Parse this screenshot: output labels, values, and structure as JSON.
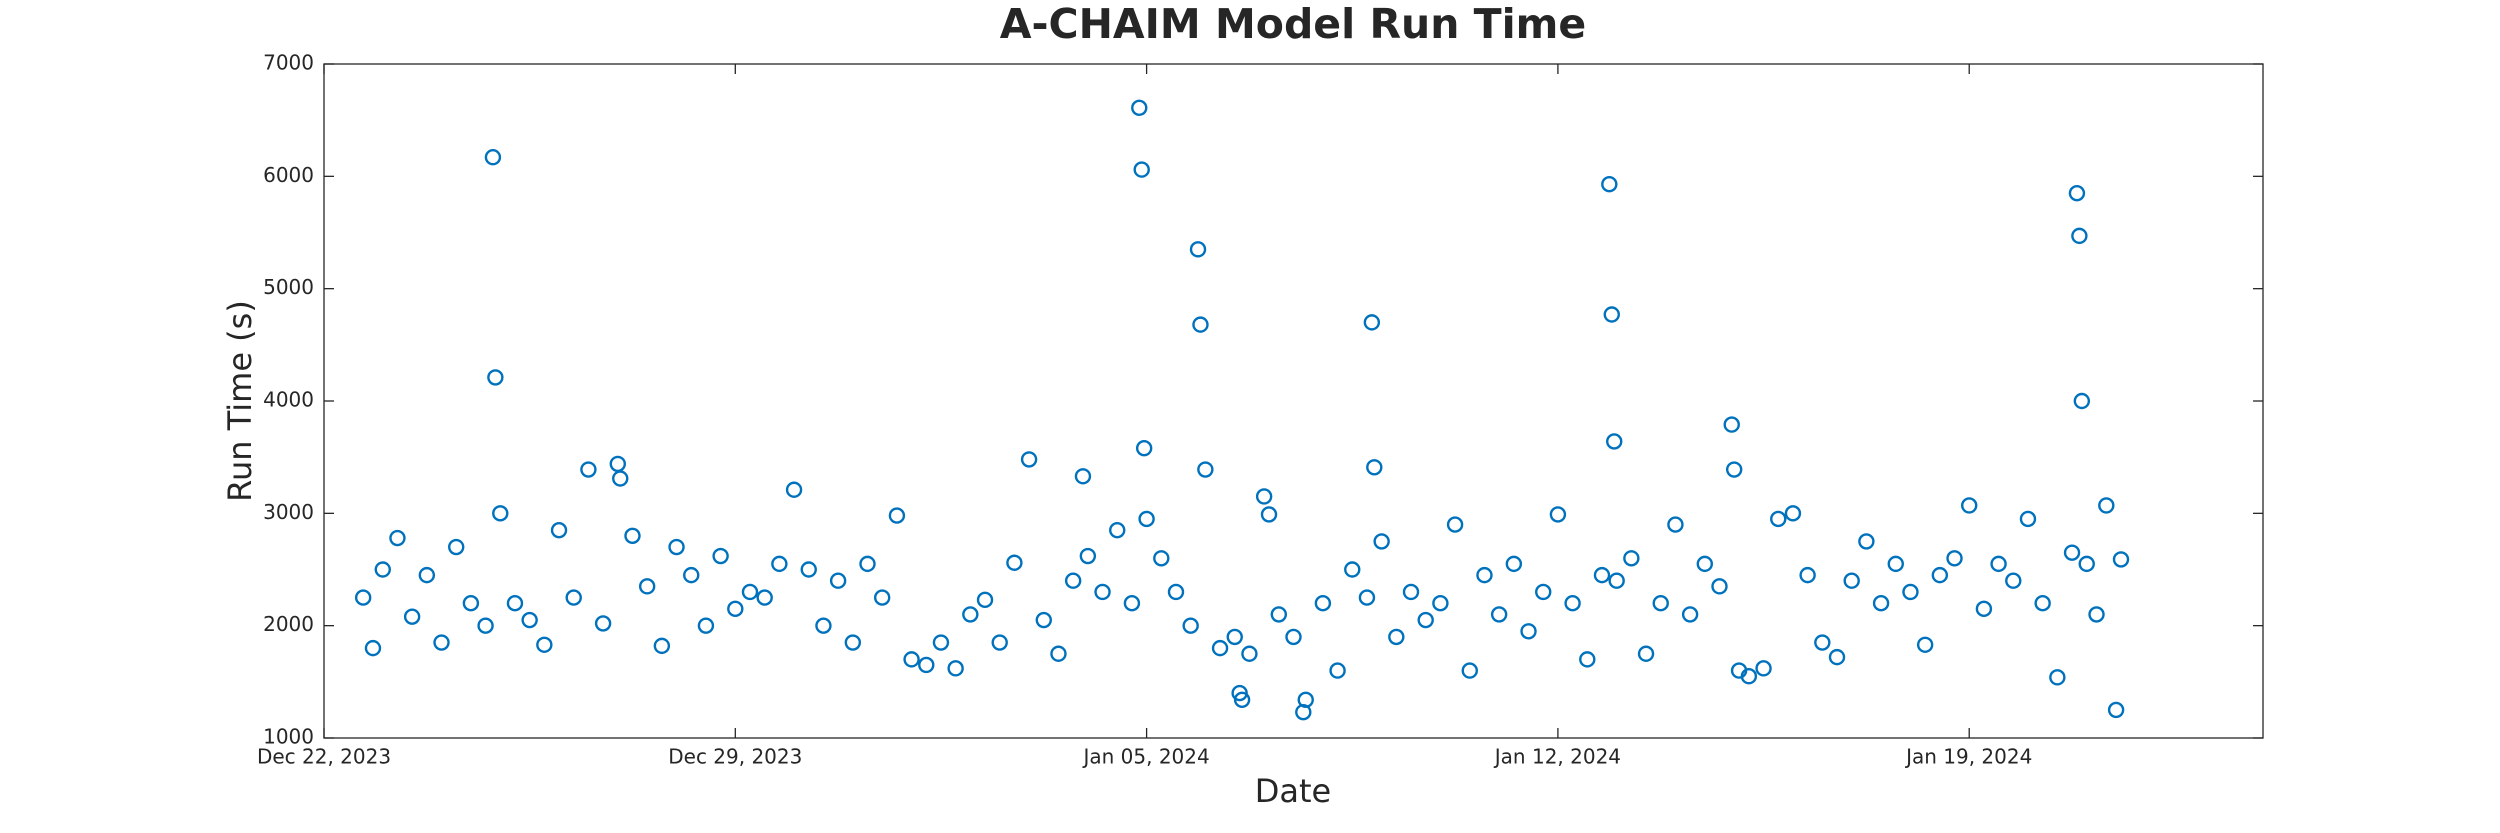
{
  "chart_data": {
    "type": "scatter",
    "title": "A-CHAIM Model Run Time",
    "xlabel": "Date",
    "ylabel": "Run Time (s)",
    "color": "#0072bd",
    "xlim": [
      "2023-12-22",
      "2024-01-24"
    ],
    "ylim": [
      1000,
      7000
    ],
    "xticks": [
      {
        "value": "2023-12-22",
        "label": "Dec 22, 2023"
      },
      {
        "value": "2023-12-29",
        "label": "Dec 29, 2023"
      },
      {
        "value": "2024-01-05",
        "label": "Jan 05, 2024"
      },
      {
        "value": "2024-01-12",
        "label": "Jan 12, 2024"
      },
      {
        "value": "2024-01-19",
        "label": "Jan 19, 2024"
      }
    ],
    "yticks": [
      1000,
      2000,
      3000,
      4000,
      5000,
      6000,
      7000
    ],
    "x": [
      "2023-12-22T16:00",
      "2023-12-22T20:00",
      "2023-12-23T00:00",
      "2023-12-23T06:00",
      "2023-12-23T12:00",
      "2023-12-23T18:00",
      "2023-12-24T00:00",
      "2023-12-24T06:00",
      "2023-12-24T12:00",
      "2023-12-24T18:00",
      "2023-12-24T21:00",
      "2023-12-24T22:00",
      "2023-12-25T00:00",
      "2023-12-25T06:00",
      "2023-12-25T12:00",
      "2023-12-25T18:00",
      "2023-12-26T00:00",
      "2023-12-26T06:00",
      "2023-12-26T12:00",
      "2023-12-26T18:00",
      "2023-12-27T00:00",
      "2023-12-27T01:00",
      "2023-12-27T06:00",
      "2023-12-27T12:00",
      "2023-12-27T18:00",
      "2023-12-28T00:00",
      "2023-12-28T06:00",
      "2023-12-28T12:00",
      "2023-12-28T18:00",
      "2023-12-29T00:00",
      "2023-12-29T06:00",
      "2023-12-29T12:00",
      "2023-12-29T18:00",
      "2023-12-30T00:00",
      "2023-12-30T06:00",
      "2023-12-30T12:00",
      "2023-12-30T18:00",
      "2023-12-31T00:00",
      "2023-12-31T06:00",
      "2023-12-31T12:00",
      "2023-12-31T18:00",
      "2024-01-01T00:00",
      "2024-01-01T06:00",
      "2024-01-01T12:00",
      "2024-01-01T18:00",
      "2024-01-02T00:00",
      "2024-01-02T06:00",
      "2024-01-02T12:00",
      "2024-01-02T18:00",
      "2024-01-03T00:00",
      "2024-01-03T06:00",
      "2024-01-03T12:00",
      "2024-01-03T18:00",
      "2024-01-03T22:00",
      "2024-01-04T00:00",
      "2024-01-04T06:00",
      "2024-01-04T12:00",
      "2024-01-04T18:00",
      "2024-01-04T21:00",
      "2024-01-04T22:00",
      "2024-01-04T23:00",
      "2024-01-05T00:00",
      "2024-01-05T06:00",
      "2024-01-05T12:00",
      "2024-01-05T18:00",
      "2024-01-05T21:00",
      "2024-01-05T22:00",
      "2024-01-06T00:00",
      "2024-01-06T06:00",
      "2024-01-06T12:00",
      "2024-01-06T14:00",
      "2024-01-06T15:00",
      "2024-01-06T18:00",
      "2024-01-07T00:00",
      "2024-01-07T02:00",
      "2024-01-07T06:00",
      "2024-01-07T12:00",
      "2024-01-07T16:00",
      "2024-01-07T17:00",
      "2024-01-08T00:00",
      "2024-01-08T06:00",
      "2024-01-08T12:00",
      "2024-01-08T18:00",
      "2024-01-08T20:00",
      "2024-01-08T21:00",
      "2024-01-09T00:00",
      "2024-01-09T06:00",
      "2024-01-09T12:00",
      "2024-01-09T18:00",
      "2024-01-10T00:00",
      "2024-01-10T06:00",
      "2024-01-10T12:00",
      "2024-01-10T18:00",
      "2024-01-11T00:00",
      "2024-01-11T06:00",
      "2024-01-11T12:00",
      "2024-01-11T18:00",
      "2024-01-12T00:00",
      "2024-01-12T06:00",
      "2024-01-12T12:00",
      "2024-01-12T18:00",
      "2024-01-12T21:00",
      "2024-01-12T22:00",
      "2024-01-12T23:00",
      "2024-01-13T00:00",
      "2024-01-13T06:00",
      "2024-01-13T12:00",
      "2024-01-13T18:00",
      "2024-01-14T00:00",
      "2024-01-14T06:00",
      "2024-01-14T12:00",
      "2024-01-14T18:00",
      "2024-01-14T23:00",
      "2024-01-15T00:00",
      "2024-01-15T02:00",
      "2024-01-15T06:00",
      "2024-01-15T12:00",
      "2024-01-15T18:00",
      "2024-01-16T00:00",
      "2024-01-16T06:00",
      "2024-01-16T12:00",
      "2024-01-16T18:00",
      "2024-01-17T00:00",
      "2024-01-17T06:00",
      "2024-01-17T12:00",
      "2024-01-17T18:00",
      "2024-01-18T00:00",
      "2024-01-18T06:00",
      "2024-01-18T12:00",
      "2024-01-18T18:00",
      "2024-01-19T00:00",
      "2024-01-19T06:00",
      "2024-01-19T12:00",
      "2024-01-19T18:00",
      "2024-01-20T00:00",
      "2024-01-20T06:00",
      "2024-01-20T12:00",
      "2024-01-20T18:00",
      "2024-01-20T20:00",
      "2024-01-20T21:00",
      "2024-01-20T22:00",
      "2024-01-21T00:00",
      "2024-01-21T04:00",
      "2024-01-21T08:00",
      "2024-01-21T12:00",
      "2024-01-21T14:00"
    ],
    "values": [
      2250,
      1800,
      2500,
      2780,
      2080,
      2450,
      1850,
      2700,
      2200,
      2000,
      6170,
      4210,
      3000,
      2200,
      2050,
      1830,
      2850,
      2250,
      3390,
      2020,
      3440,
      3310,
      2800,
      2350,
      1820,
      2700,
      2450,
      2000,
      2620,
      2150,
      2300,
      2250,
      2550,
      3210,
      2500,
      2000,
      2400,
      1850,
      2550,
      2250,
      2980,
      1700,
      1650,
      1850,
      1620,
      2100,
      2230,
      1850,
      2560,
      3480,
      2050,
      1750,
      2400,
      3330,
      2620,
      2300,
      2850,
      2200,
      6610,
      6060,
      3580,
      2950,
      2600,
      2300,
      2000,
      5350,
      4680,
      3390,
      1800,
      1900,
      1400,
      1340,
      1750,
      3150,
      2990,
      2100,
      1900,
      1230,
      1340,
      2200,
      1600,
      2500,
      2250,
      4700,
      3410,
      2750,
      1900,
      2300,
      2050,
      2200,
      2900,
      1600,
      2450,
      2100,
      2550,
      1950,
      2300,
      2990,
      2200,
      1700,
      2450,
      5930,
      4770,
      3640,
      2400,
      2600,
      1750,
      2200,
      2900,
      2100,
      2550,
      2350,
      3790,
      3390,
      1600,
      1550,
      1620,
      2950,
      3000,
      2450,
      1850,
      1720,
      2400,
      2750,
      2200,
      2550,
      2300,
      1830,
      2450,
      2600,
      3070,
      2150,
      2550,
      2400,
      2950,
      2200,
      1540,
      2650,
      5850,
      5470,
      4000,
      2550,
      2100,
      3070,
      1250,
      2590
    ]
  }
}
